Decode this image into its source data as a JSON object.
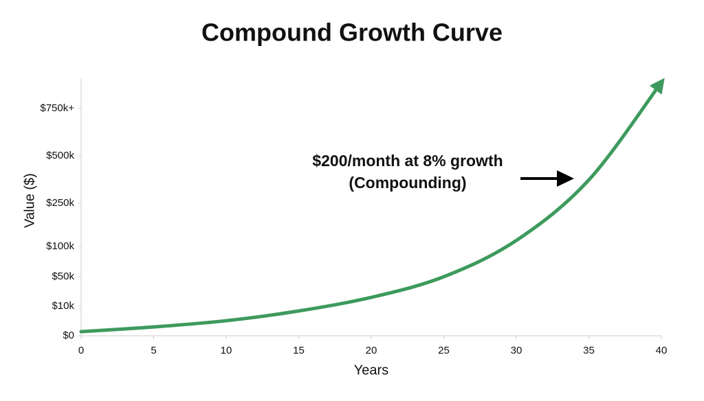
{
  "chart_data": {
    "type": "line",
    "title": "Compound Growth Curve",
    "x_label": "Years",
    "y_label": "Value ($)",
    "annotation": [
      "$200/month at 8% growth",
      "(Compounding)"
    ],
    "x": [
      0,
      5,
      10,
      15,
      20,
      25,
      30,
      35,
      40
    ],
    "series": [
      {
        "color": "#3d9a5c",
        "values": [
          1400,
          3000,
          5100,
          8400,
          22000,
          50000,
          121000,
          373000,
          888000
        ]
      }
    ],
    "xlim": [
      0,
      40
    ],
    "xticks": [
      0,
      5,
      10,
      15,
      20,
      25,
      30,
      35,
      40
    ],
    "ylim": [
      0,
      900000
    ],
    "yticks": [
      {
        "value": 0,
        "label": "$0"
      },
      {
        "value": 10000,
        "label": "$10k"
      },
      {
        "value": 50000,
        "label": "$50k"
      },
      {
        "value": 100000,
        "label": "$100k"
      },
      {
        "value": 250000,
        "label": "$250k"
      },
      {
        "value": 500000,
        "label": "$500k"
      },
      {
        "value": 750000,
        "label": "$750k+"
      }
    ],
    "grid": false
  }
}
